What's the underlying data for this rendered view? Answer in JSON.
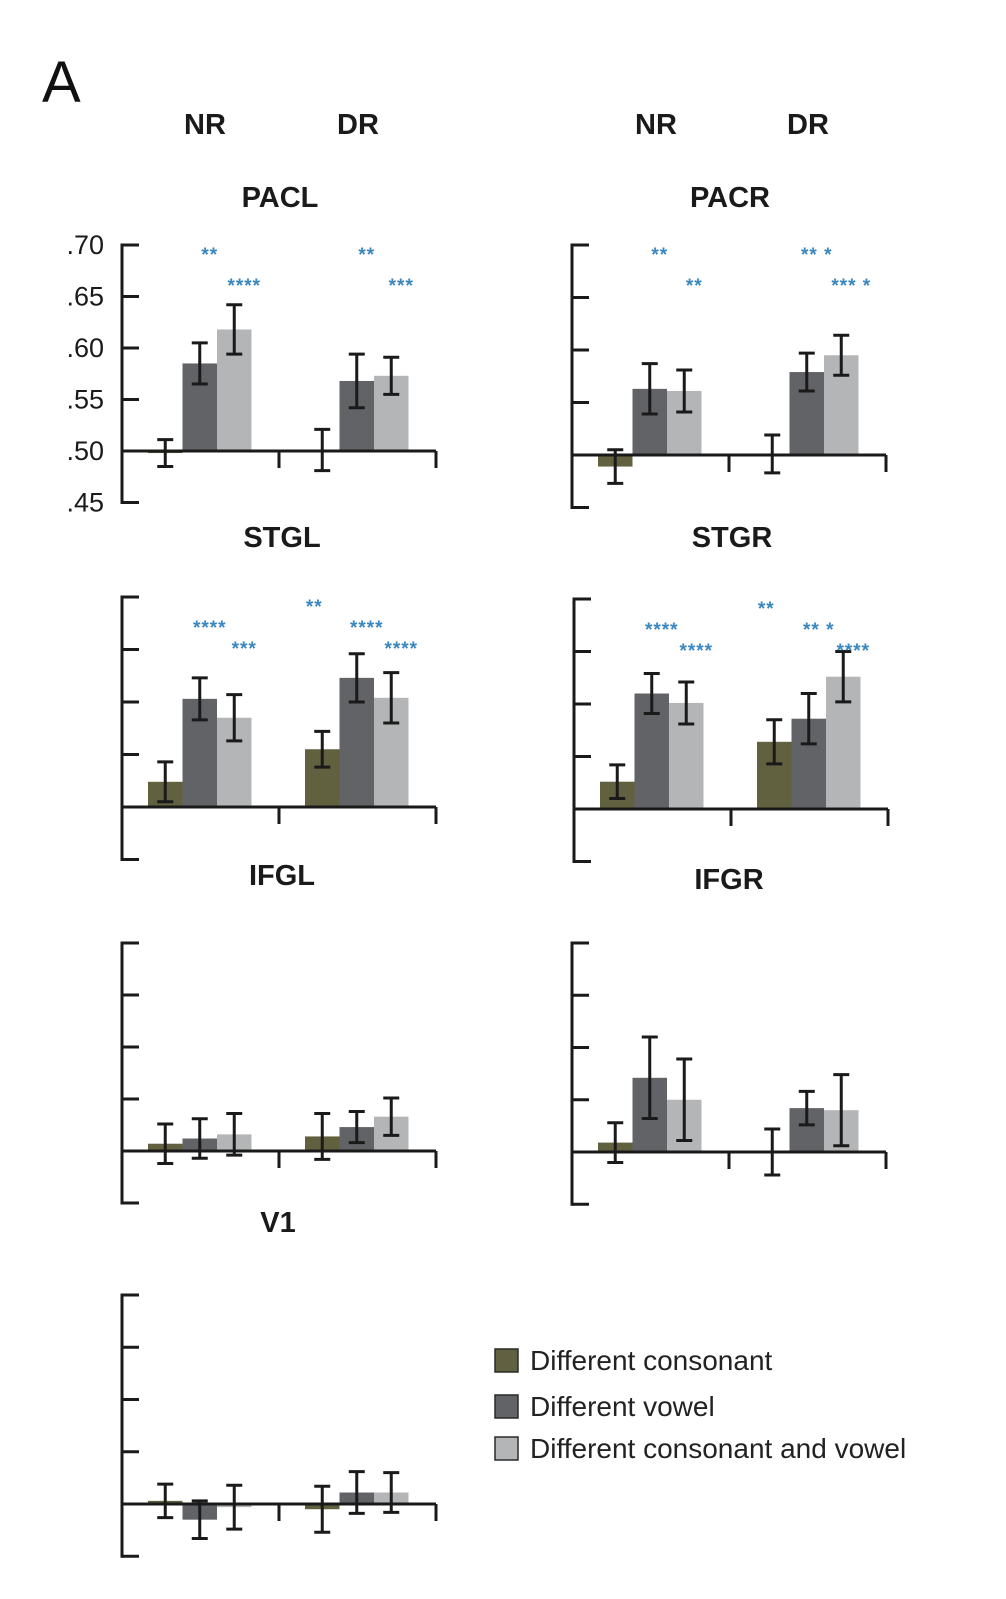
{
  "panel_letter": "A",
  "group_headers": [
    "NR",
    "DR",
    "NR",
    "DR"
  ],
  "legend": [
    {
      "label": "Different consonant",
      "color": "#62613f"
    },
    {
      "label": "Different vowel",
      "color": "#626366"
    },
    {
      "label": "Different consonant and vowel",
      "color": "#b4b5b7"
    }
  ],
  "significance_color": "#3a87c0",
  "chart_data": [
    {
      "type": "bar",
      "title": "PACL",
      "categories": [
        "NR",
        "DR"
      ],
      "ylim": [
        0.45,
        0.7
      ],
      "yticks": [
        0.45,
        0.5,
        0.55,
        0.6,
        0.65,
        0.7
      ],
      "ytick_labels": [
        ".45",
        ".50",
        ".55",
        ".60",
        ".65",
        ".70"
      ],
      "series": [
        {
          "name": "Different consonant",
          "values": [
            0.498,
            0.501
          ],
          "errors": [
            0.013,
            0.02
          ]
        },
        {
          "name": "Different vowel",
          "values": [
            0.585,
            0.568
          ],
          "errors": [
            0.02,
            0.026
          ]
        },
        {
          "name": "Different consonant and vowel",
          "values": [
            0.618,
            0.573
          ],
          "errors": [
            0.024,
            0.018
          ]
        }
      ],
      "annotations": [
        {
          "text": "**",
          "group": 0,
          "row": 0,
          "over": 1
        },
        {
          "text": "****",
          "group": 0,
          "row": 1,
          "over": 2
        },
        {
          "text": "**",
          "group": 1,
          "row": 0,
          "over": 1
        },
        {
          "text": "***",
          "group": 1,
          "row": 1,
          "over": 2
        }
      ]
    },
    {
      "type": "bar",
      "title": "PACR",
      "categories": [
        "NR",
        "DR"
      ],
      "ylim": [
        0.45,
        0.7
      ],
      "yticks": [
        0.45,
        0.5,
        0.55,
        0.6,
        0.65,
        0.7
      ],
      "ytick_labels": [],
      "series": [
        {
          "name": "Different consonant",
          "values": [
            0.489,
            0.501
          ],
          "errors": [
            0.016,
            0.018
          ]
        },
        {
          "name": "Different vowel",
          "values": [
            0.563,
            0.579
          ],
          "errors": [
            0.024,
            0.018
          ]
        },
        {
          "name": "Different consonant and vowel",
          "values": [
            0.561,
            0.595
          ],
          "errors": [
            0.02,
            0.019
          ]
        }
      ],
      "annotations": [
        {
          "text": "**",
          "group": 0,
          "row": 0,
          "over": 1
        },
        {
          "text": "**",
          "group": 0,
          "row": 1,
          "over": 2
        },
        {
          "text": "** *",
          "group": 1,
          "row": 0,
          "over": 1
        },
        {
          "text": "*** *",
          "group": 1,
          "row": 1,
          "over": 2
        }
      ]
    },
    {
      "type": "bar",
      "title": "STGL",
      "categories": [
        "NR",
        "DR"
      ],
      "ylim": [
        0.45,
        0.7
      ],
      "yticks": [
        0.45,
        0.5,
        0.55,
        0.6,
        0.65,
        0.7
      ],
      "ytick_labels": [],
      "series": [
        {
          "name": "Different consonant",
          "values": [
            0.524,
            0.555
          ],
          "errors": [
            0.019,
            0.017
          ]
        },
        {
          "name": "Different vowel",
          "values": [
            0.603,
            0.623
          ],
          "errors": [
            0.02,
            0.023
          ]
        },
        {
          "name": "Different consonant and vowel",
          "values": [
            0.585,
            0.604
          ],
          "errors": [
            0.022,
            0.024
          ]
        }
      ],
      "annotations": [
        {
          "text": "****",
          "group": 0,
          "row": 1,
          "over": 1
        },
        {
          "text": "***",
          "group": 0,
          "row": 2,
          "over": 2
        },
        {
          "text": "**",
          "group": 1,
          "row": 0,
          "over": 0
        },
        {
          "text": "****",
          "group": 1,
          "row": 1,
          "over": 1
        },
        {
          "text": "****",
          "group": 1,
          "row": 2,
          "over": 2
        }
      ]
    },
    {
      "type": "bar",
      "title": "STGR",
      "categories": [
        "NR",
        "DR"
      ],
      "ylim": [
        0.45,
        0.7
      ],
      "yticks": [
        0.45,
        0.5,
        0.55,
        0.6,
        0.65,
        0.7
      ],
      "ytick_labels": [],
      "series": [
        {
          "name": "Different consonant",
          "values": [
            0.526,
            0.564
          ],
          "errors": [
            0.016,
            0.021
          ]
        },
        {
          "name": "Different vowel",
          "values": [
            0.61,
            0.586
          ],
          "errors": [
            0.019,
            0.024
          ]
        },
        {
          "name": "Different consonant and vowel",
          "values": [
            0.601,
            0.626
          ],
          "errors": [
            0.02,
            0.024
          ]
        }
      ],
      "annotations": [
        {
          "text": "****",
          "group": 0,
          "row": 1,
          "over": 1
        },
        {
          "text": "****",
          "group": 0,
          "row": 2,
          "over": 2
        },
        {
          "text": "**",
          "group": 1,
          "row": 0,
          "over": 0
        },
        {
          "text": "** *",
          "group": 1,
          "row": 1,
          "over": 1
        },
        {
          "text": "****",
          "group": 1,
          "row": 2,
          "over": 2
        }
      ]
    },
    {
      "type": "bar",
      "title": "IFGL",
      "categories": [
        "NR",
        "DR"
      ],
      "ylim": [
        0.45,
        0.7
      ],
      "yticks": [
        0.45,
        0.5,
        0.55,
        0.6,
        0.65,
        0.7
      ],
      "ytick_labels": [],
      "series": [
        {
          "name": "Different consonant",
          "values": [
            0.507,
            0.514
          ],
          "errors": [
            0.019,
            0.022
          ]
        },
        {
          "name": "Different vowel",
          "values": [
            0.512,
            0.523
          ],
          "errors": [
            0.019,
            0.015
          ]
        },
        {
          "name": "Different consonant and vowel",
          "values": [
            0.516,
            0.533
          ],
          "errors": [
            0.02,
            0.018
          ]
        }
      ],
      "annotations": []
    },
    {
      "type": "bar",
      "title": "IFGR",
      "categories": [
        "NR",
        "DR"
      ],
      "ylim": [
        0.45,
        0.7
      ],
      "yticks": [
        0.45,
        0.5,
        0.55,
        0.6,
        0.65,
        0.7
      ],
      "ytick_labels": [],
      "series": [
        {
          "name": "Different consonant",
          "values": [
            0.509,
            0.5
          ],
          "errors": [
            0.019,
            0.022
          ]
        },
        {
          "name": "Different vowel",
          "values": [
            0.571,
            0.542
          ],
          "errors": [
            0.039,
            0.016
          ]
        },
        {
          "name": "Different consonant and vowel",
          "values": [
            0.55,
            0.54
          ],
          "errors": [
            0.039,
            0.034
          ]
        }
      ],
      "annotations": []
    },
    {
      "type": "bar",
      "title": "V1",
      "categories": [
        "NR",
        "DR"
      ],
      "ylim": [
        0.45,
        0.7
      ],
      "yticks": [
        0.45,
        0.5,
        0.55,
        0.6,
        0.65,
        0.7
      ],
      "ytick_labels": [],
      "series": [
        {
          "name": "Different consonant",
          "values": [
            0.503,
            0.495
          ],
          "errors": [
            0.016,
            0.022
          ]
        },
        {
          "name": "Different vowel",
          "values": [
            0.485,
            0.511
          ],
          "errors": [
            0.018,
            0.02
          ]
        },
        {
          "name": "Different consonant and vowel",
          "values": [
            0.497,
            0.511
          ],
          "errors": [
            0.021,
            0.019
          ]
        }
      ],
      "annotations": []
    }
  ]
}
